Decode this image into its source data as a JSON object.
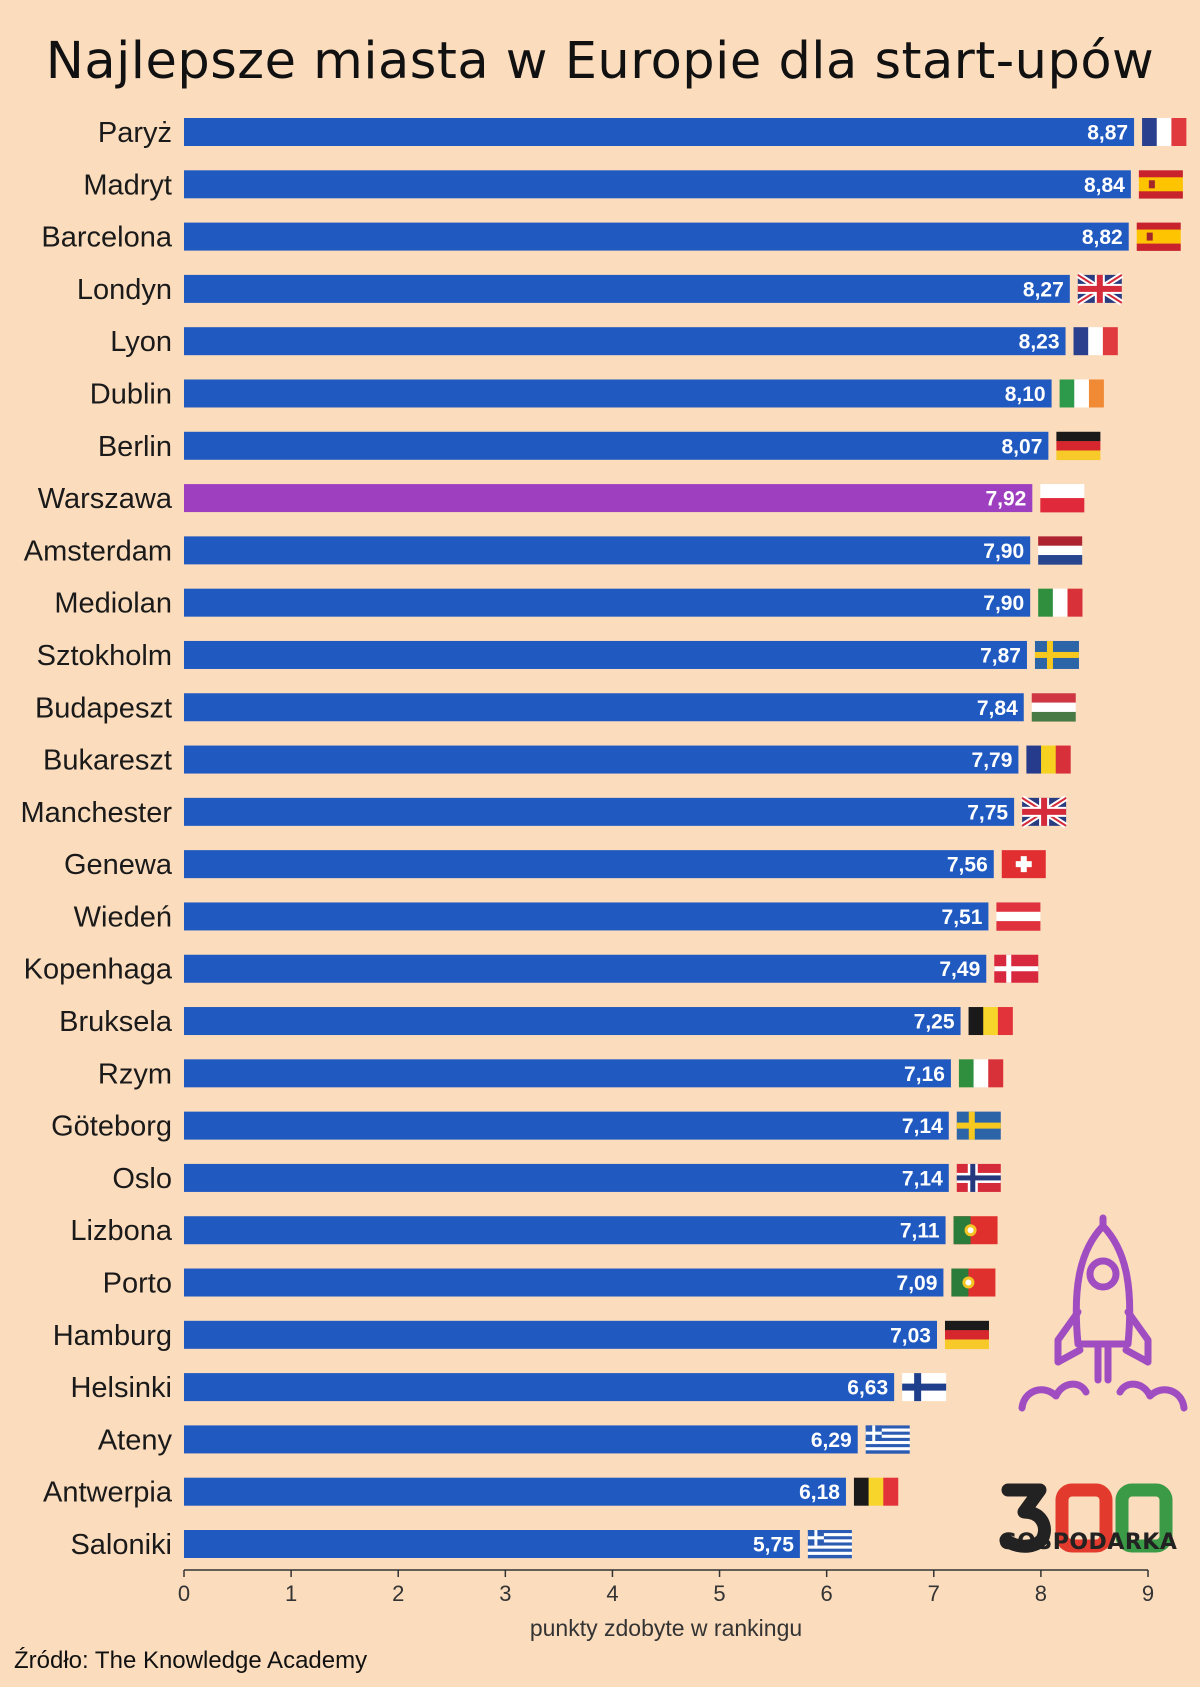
{
  "title": "Najlepsze miasta w Europie dla start-upów",
  "source": "Źródło: The Knowledge Academy",
  "brand": {
    "name": "GOSPODARKA",
    "mark": "300"
  },
  "colors": {
    "bar": "#2059c0",
    "highlight": "#9e3fc0",
    "background": "#fbdcbd",
    "rocket": "#a14dc2"
  },
  "chart_data": {
    "type": "bar",
    "orientation": "horizontal",
    "xlabel": "punkty zdobyte w rankingu",
    "xlim": [
      0,
      9
    ],
    "xticks": [
      "0",
      "1",
      "2",
      "3",
      "4",
      "5",
      "6",
      "7",
      "8",
      "9"
    ],
    "grid": false,
    "highlight": "Warszawa",
    "categories": [
      "Paryż",
      "Madryt",
      "Barcelona",
      "Londyn",
      "Lyon",
      "Dublin",
      "Berlin",
      "Warszawa",
      "Amsterdam",
      "Mediolan",
      "Sztokholm",
      "Budapeszt",
      "Bukareszt",
      "Manchester",
      "Genewa",
      "Wiedeń",
      "Kopenhaga",
      "Bruksela",
      "Rzym",
      "Göteborg",
      "Oslo",
      "Lizbona",
      "Porto",
      "Hamburg",
      "Helsinki",
      "Ateny",
      "Antwerpia",
      "Saloniki"
    ],
    "values": [
      8.87,
      8.84,
      8.82,
      8.27,
      8.23,
      8.1,
      8.07,
      7.92,
      7.9,
      7.9,
      7.87,
      7.84,
      7.79,
      7.75,
      7.56,
      7.51,
      7.49,
      7.25,
      7.16,
      7.14,
      7.14,
      7.11,
      7.09,
      7.03,
      6.63,
      6.29,
      6.18,
      5.75
    ],
    "value_labels": [
      "8,87",
      "8,84",
      "8,82",
      "8,27",
      "8,23",
      "8,10",
      "8,07",
      "7,92",
      "7,90",
      "7,90",
      "7,87",
      "7,84",
      "7,79",
      "7,75",
      "7,56",
      "7,51",
      "7,49",
      "7,25",
      "7,16",
      "7,14",
      "7,14",
      "7,11",
      "7,09",
      "7,03",
      "6,63",
      "6,29",
      "6,18",
      "5,75"
    ],
    "flags": [
      "fr",
      "es",
      "es",
      "gb",
      "fr",
      "ie",
      "de",
      "pl",
      "nl",
      "it",
      "se",
      "hu",
      "ro",
      "gb",
      "ch",
      "at",
      "dk",
      "be",
      "it",
      "se",
      "no",
      "pt",
      "pt",
      "de",
      "fi",
      "gr",
      "be",
      "gr"
    ]
  }
}
